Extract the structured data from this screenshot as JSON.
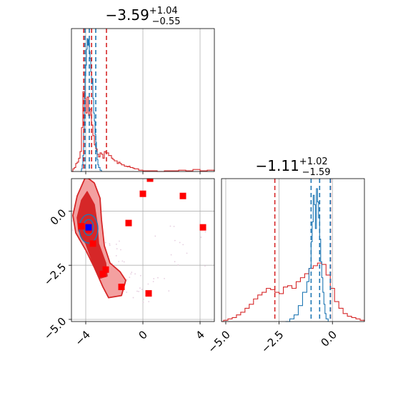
{
  "chart_data": {
    "type": "corner",
    "colors": {
      "red": "#d62728",
      "blue": "#1f77b4",
      "red_fill_light": "#f3a0a0",
      "red_fill_dark": "#d62728",
      "truth_marker": "#0000ff",
      "grid": "#b0b0b0",
      "scatter": "#e6cfe0"
    },
    "param1": {
      "title_main": "−3.59",
      "title_sup": "+1.04",
      "title_sub": "−0.55",
      "range": [
        -5,
        5
      ],
      "ticks": [
        -4,
        0,
        4
      ],
      "tick_labels": [
        "−4",
        "0",
        "4"
      ],
      "red_quantiles": [
        -4.14,
        -3.59,
        -2.55
      ],
      "blue_quantiles": [
        -4.05,
        -3.75,
        -3.3
      ]
    },
    "param2": {
      "title_main": "−1.11",
      "title_sup": "+1.02",
      "title_sub": "−1.59",
      "range": [
        -5.2,
        1.5
      ],
      "ticks": [
        -5.0,
        -2.5,
        0.0
      ],
      "tick_labels": [
        "−5.0",
        "−2.5",
        "0.0"
      ],
      "red_quantiles": [
        -2.7,
        -1.11,
        -0.09
      ],
      "blue_quantiles": [
        -1.0,
        -0.6,
        -0.1
      ]
    },
    "joint": {
      "xlim": [
        -5,
        5
      ],
      "ylim": [
        -5.1,
        1.5
      ],
      "xticks": [
        -4,
        0,
        4
      ],
      "xtick_labels": [
        "−4",
        "0",
        "4"
      ],
      "yticks": [
        -5.0,
        -2.5,
        0.0
      ],
      "ytick_labels": [
        "−5.0",
        "−2.5",
        "0.0"
      ],
      "square_points": [
        [
          0.5,
          1.5
        ],
        [
          0.0,
          0.8
        ],
        [
          2.8,
          0.7
        ],
        [
          -1.0,
          -0.55
        ],
        [
          4.2,
          -0.75
        ],
        [
          -4.3,
          -0.7
        ],
        [
          -3.8,
          -0.85
        ],
        [
          -3.5,
          -1.5
        ],
        [
          -2.6,
          -2.7
        ],
        [
          -2.8,
          -2.9
        ],
        [
          -1.5,
          -3.5
        ],
        [
          0.4,
          -3.8
        ]
      ],
      "blue_point": [
        -3.8,
        -0.75
      ]
    },
    "hist1_red": [
      [
        -5,
        0
      ],
      [
        -4.9,
        0.02
      ],
      [
        -4.8,
        0.03
      ],
      [
        -4.7,
        0.06
      ],
      [
        -4.6,
        0.07
      ],
      [
        -4.5,
        0.1
      ],
      [
        -4.4,
        0.15
      ],
      [
        -4.3,
        0.33
      ],
      [
        -4.2,
        0.6
      ],
      [
        -4.1,
        0.55
      ],
      [
        -4.0,
        0.44
      ],
      [
        -3.9,
        0.56
      ],
      [
        -3.8,
        0.42
      ],
      [
        -3.7,
        0.47
      ],
      [
        -3.6,
        0.35
      ],
      [
        -3.5,
        0.27
      ],
      [
        -3.4,
        0.2
      ],
      [
        -3.3,
        0.17
      ],
      [
        -3.2,
        0.13
      ],
      [
        -3.1,
        0.11
      ],
      [
        -3.0,
        0.14
      ],
      [
        -2.9,
        0.13
      ],
      [
        -2.8,
        0.1
      ],
      [
        -2.7,
        0.15
      ],
      [
        -2.6,
        0.14
      ],
      [
        -2.5,
        0.14
      ],
      [
        -2.4,
        0.12
      ],
      [
        -2.3,
        0.12
      ],
      [
        -2.2,
        0.1
      ],
      [
        -2.1,
        0.09
      ],
      [
        -2.0,
        0.08
      ],
      [
        -1.9,
        0.08
      ],
      [
        -1.8,
        0.06
      ],
      [
        -1.7,
        0.07
      ],
      [
        -1.6,
        0.06
      ],
      [
        -1.5,
        0.05
      ],
      [
        -1.4,
        0.05
      ],
      [
        -1.3,
        0.04
      ],
      [
        -1.2,
        0.04
      ],
      [
        -1.1,
        0.035
      ],
      [
        -1.0,
        0.04
      ],
      [
        -0.9,
        0.03
      ],
      [
        -0.8,
        0.03
      ],
      [
        -0.7,
        0.025
      ],
      [
        -0.6,
        0.02
      ],
      [
        -0.5,
        0.02
      ],
      [
        -0.4,
        0.02
      ],
      [
        -0.3,
        0.01
      ],
      [
        0.0,
        0.005
      ],
      [
        0.5,
        0.005
      ],
      [
        1.0,
        0.0
      ],
      [
        1.5,
        0.005
      ],
      [
        2.0,
        0.005
      ],
      [
        2.5,
        0.01
      ],
      [
        3.0,
        0.005
      ],
      [
        3.5,
        0.015
      ],
      [
        4.0,
        0.005
      ],
      [
        4.5,
        0.01
      ],
      [
        5,
        0
      ]
    ],
    "hist1_blue": [
      [
        -4.4,
        0
      ],
      [
        -4.3,
        0.02
      ],
      [
        -4.25,
        0.05
      ],
      [
        -4.2,
        0.12
      ],
      [
        -4.15,
        0.3
      ],
      [
        -4.1,
        0.55
      ],
      [
        -4.05,
        0.72
      ],
      [
        -4.0,
        0.8
      ],
      [
        -3.95,
        0.92
      ],
      [
        -3.9,
        1.0
      ],
      [
        -3.85,
        0.95
      ],
      [
        -3.8,
        0.99
      ],
      [
        -3.75,
        0.9
      ],
      [
        -3.7,
        0.85
      ],
      [
        -3.65,
        0.75
      ],
      [
        -3.6,
        0.66
      ],
      [
        -3.55,
        0.7
      ],
      [
        -3.5,
        0.55
      ],
      [
        -3.45,
        0.44
      ],
      [
        -3.4,
        0.38
      ],
      [
        -3.35,
        0.28
      ],
      [
        -3.3,
        0.22
      ],
      [
        -3.25,
        0.15
      ],
      [
        -3.2,
        0.09
      ],
      [
        -3.15,
        0.05
      ],
      [
        -3.1,
        0.03
      ],
      [
        -3.0,
        0.01
      ],
      [
        -2.9,
        0
      ]
    ],
    "hist2_red": [
      [
        -5.2,
        0
      ],
      [
        -5.1,
        0.01
      ],
      [
        -4.9,
        0.02
      ],
      [
        -4.7,
        0.03
      ],
      [
        -4.5,
        0.05
      ],
      [
        -4.3,
        0.07
      ],
      [
        -4.1,
        0.1
      ],
      [
        -3.9,
        0.13
      ],
      [
        -3.7,
        0.17
      ],
      [
        -3.5,
        0.2
      ],
      [
        -3.3,
        0.22
      ],
      [
        -3.1,
        0.25
      ],
      [
        -2.9,
        0.24
      ],
      [
        -2.7,
        0.22
      ],
      [
        -2.5,
        0.21
      ],
      [
        -2.3,
        0.26
      ],
      [
        -2.1,
        0.27
      ],
      [
        -1.9,
        0.25
      ],
      [
        -1.7,
        0.3
      ],
      [
        -1.5,
        0.33
      ],
      [
        -1.3,
        0.36
      ],
      [
        -1.1,
        0.4
      ],
      [
        -0.9,
        0.42
      ],
      [
        -0.7,
        0.44
      ],
      [
        -0.5,
        0.43
      ],
      [
        -0.3,
        0.35
      ],
      [
        -0.1,
        0.25
      ],
      [
        0.1,
        0.15
      ],
      [
        0.3,
        0.1
      ],
      [
        0.5,
        0.06
      ],
      [
        0.7,
        0.04
      ],
      [
        0.9,
        0.03
      ],
      [
        1.1,
        0.02
      ],
      [
        1.3,
        0.01
      ],
      [
        1.5,
        0
      ]
    ],
    "hist2_blue": [
      [
        -2.2,
        0
      ],
      [
        -2.0,
        0.02
      ],
      [
        -1.8,
        0.05
      ],
      [
        -1.6,
        0.12
      ],
      [
        -1.4,
        0.22
      ],
      [
        -1.2,
        0.3
      ],
      [
        -1.1,
        0.4
      ],
      [
        -1.0,
        0.6
      ],
      [
        -0.95,
        0.75
      ],
      [
        -0.9,
        0.95
      ],
      [
        -0.85,
        0.88
      ],
      [
        -0.8,
        0.7
      ],
      [
        -0.75,
        1.0
      ],
      [
        -0.7,
        0.9
      ],
      [
        -0.65,
        0.78
      ],
      [
        -0.6,
        0.62
      ],
      [
        -0.55,
        0.45
      ],
      [
        -0.5,
        0.33
      ],
      [
        -0.45,
        0.22
      ],
      [
        -0.4,
        0.13
      ],
      [
        -0.35,
        0.06
      ],
      [
        -0.3,
        0.02
      ],
      [
        -0.2,
        0
      ]
    ]
  }
}
